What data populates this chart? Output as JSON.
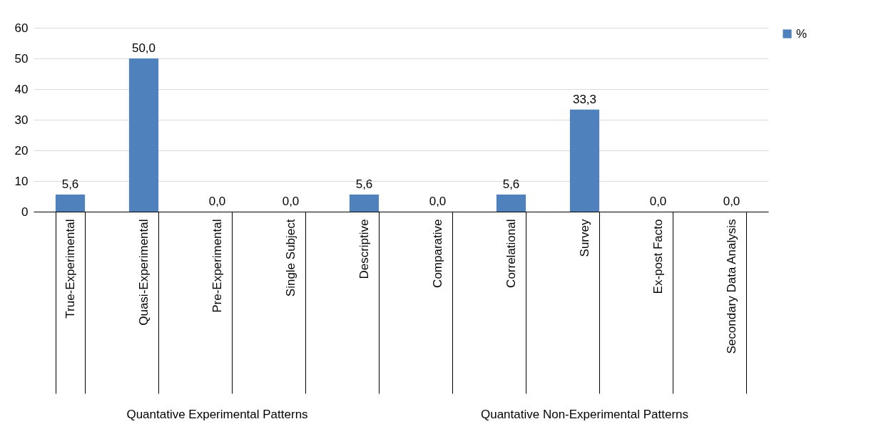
{
  "chart_data": {
    "type": "bar",
    "categories": [
      "True-Experimental",
      "Quasi-Experimental",
      "Pre-Experimental",
      "Single Subject",
      "Descriptive",
      "Comparative",
      "Correlational",
      "Survey",
      "Ex-post Facto",
      "Secondary Data Analysis"
    ],
    "series": [
      {
        "name": "%",
        "color": "#4f81bd",
        "values": [
          5.6,
          50.0,
          0.0,
          0.0,
          5.6,
          0.0,
          5.6,
          33.3,
          0.0,
          0.0
        ],
        "value_labels": [
          "5,6",
          "50,0",
          "0,0",
          "0,0",
          "5,6",
          "0,0",
          "5,6",
          "33,3",
          "0,0",
          "0,0"
        ]
      }
    ],
    "ylim": [
      0,
      60
    ],
    "yticks": [
      0,
      10,
      20,
      30,
      40,
      50,
      60
    ],
    "grid": "y",
    "legend": "right",
    "annotations": [
      "Quantative Experimental Patterns",
      "Quantative Non-Experimental Patterns"
    ]
  }
}
